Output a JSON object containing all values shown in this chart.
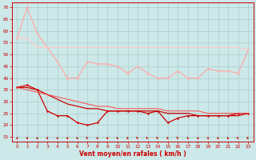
{
  "x": [
    0,
    1,
    2,
    3,
    4,
    5,
    6,
    7,
    8,
    9,
    10,
    11,
    12,
    13,
    14,
    15,
    16,
    17,
    18,
    19,
    20,
    21,
    22,
    23
  ],
  "line_rafales_max": [
    57,
    70,
    59,
    53,
    47,
    40,
    40,
    47,
    46,
    46,
    45,
    42,
    45,
    42,
    40,
    40,
    43,
    40,
    40,
    44,
    43,
    43,
    42,
    52
  ],
  "line_rafales_flat": [
    57,
    57,
    53,
    53,
    53,
    53,
    53,
    53,
    53,
    53,
    53,
    53,
    53,
    53,
    53,
    53,
    53,
    53,
    53,
    53,
    53,
    53,
    53,
    52
  ],
  "line_vent_inst": [
    36,
    37,
    35,
    26,
    24,
    24,
    21,
    20,
    21,
    26,
    26,
    26,
    26,
    25,
    26,
    21,
    23,
    24,
    24,
    24,
    24,
    24,
    25,
    25
  ],
  "line_vent_moy": [
    36,
    36,
    35,
    33,
    31,
    29,
    28,
    27,
    27,
    26,
    26,
    26,
    26,
    26,
    26,
    25,
    25,
    25,
    24,
    24,
    24,
    24,
    24,
    25
  ],
  "line_vent_flat": [
    36,
    35,
    34,
    33,
    32,
    31,
    30,
    29,
    28,
    28,
    27,
    27,
    27,
    27,
    27,
    26,
    26,
    26,
    26,
    25,
    25,
    25,
    25,
    25
  ],
  "bg_color": "#cce8e8",
  "grid_color": "#aacccc",
  "color_light1": "#ffaaaa",
  "color_light2": "#ffcccc",
  "color_dark": "#cc0000",
  "color_med": "#ff4444",
  "xlabel": "Vent moyen/en rafales ( km/h )",
  "yticks": [
    15,
    20,
    25,
    30,
    35,
    40,
    45,
    50,
    55,
    60,
    65,
    70
  ],
  "ylim": [
    13,
    72
  ],
  "xlim": [
    -0.5,
    23.5
  ],
  "arrow_angles": [
    90,
    90,
    90,
    90,
    90,
    90,
    75,
    65,
    75,
    80,
    70,
    80,
    60,
    55,
    60,
    70,
    65,
    80,
    85,
    90,
    80,
    70,
    60,
    55
  ]
}
